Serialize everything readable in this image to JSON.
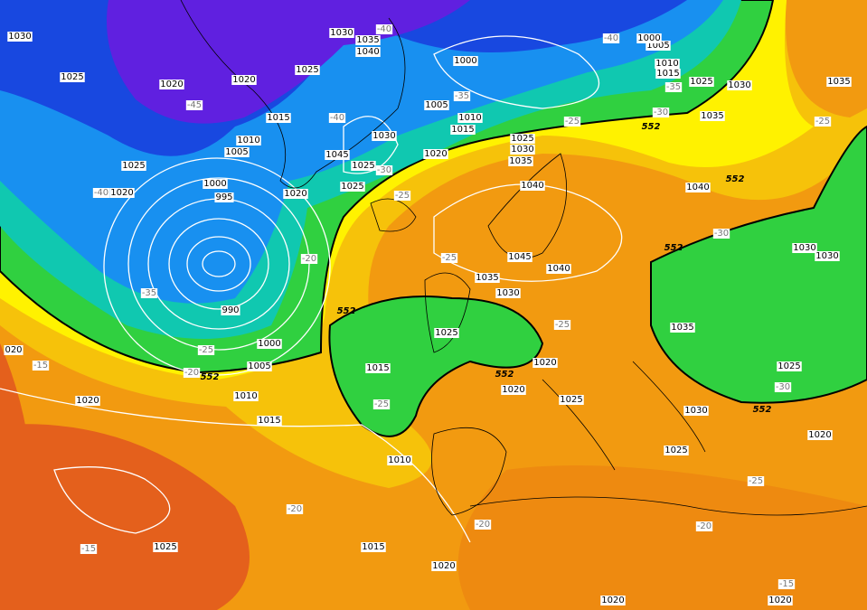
{
  "isobar_labels": [
    "1030",
    "1025",
    "1020",
    "1020",
    "1025",
    "1030",
    "1035",
    "1040",
    "1000",
    "1005",
    "1010",
    "1015",
    "1020",
    "1030",
    "1045",
    "1025",
    "1025",
    "1020",
    "1015",
    "1010",
    "1005",
    "1025",
    "1020",
    "1000",
    "995",
    "990",
    "1000",
    "1005",
    "1010",
    "1015",
    "1020",
    "1025",
    "1015",
    "1020",
    "1020",
    "1020",
    "1010",
    "1015",
    "1025",
    "1035",
    "1030",
    "1045",
    "1040",
    "1040",
    "1035",
    "1030",
    "1025",
    "1020",
    "1020",
    "1025",
    "1030",
    "1025",
    "1020",
    "1025",
    "1035",
    "1030",
    "1030",
    "1040",
    "1035",
    "1030",
    "1025",
    "1015",
    "1010",
    "1005",
    "1000",
    "1035",
    "020"
  ],
  "temperature_labels": [
    "-40",
    "-40",
    "-45",
    "-40",
    "-35",
    "-25",
    "-20",
    "-15",
    "-20",
    "-25",
    "-30",
    "-40",
    "-35",
    "-25",
    "-30",
    "-35",
    "-25",
    "-30",
    "-25",
    "-25",
    "-25",
    "-30",
    "-25",
    "-20",
    "-20",
    "-20",
    "-15",
    "-15"
  ],
  "contour_552_labels": [
    "552",
    "552",
    "552",
    "552",
    "552",
    "552",
    "552"
  ]
}
